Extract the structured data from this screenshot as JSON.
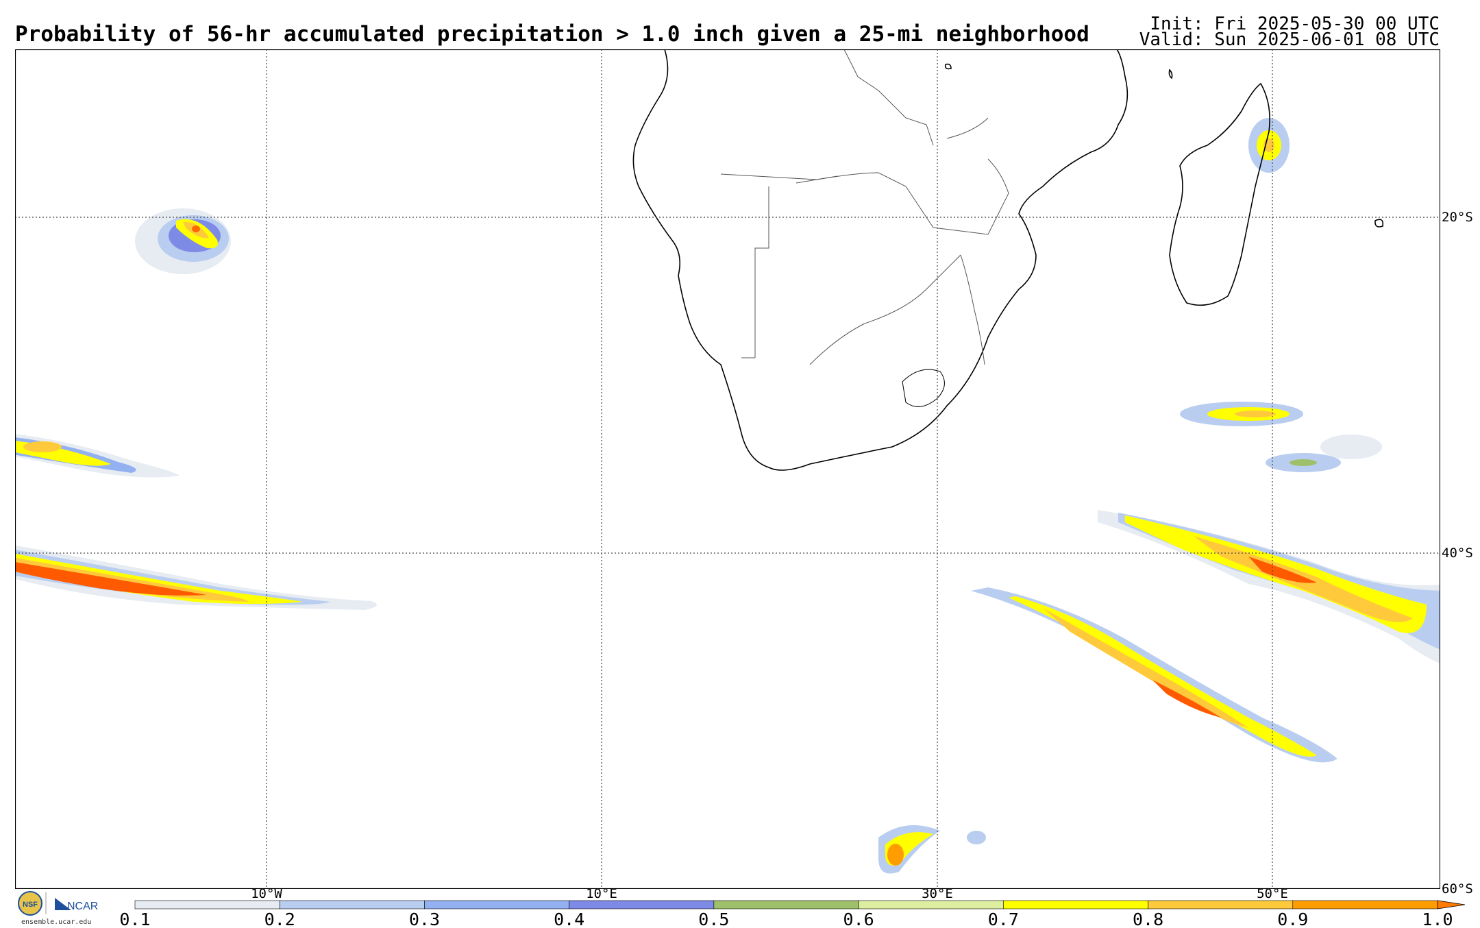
{
  "title": "Probability of 56-hr accumulated precipitation > 1.0 inch given a 25-mi neighborhood",
  "init": "Init: Fri 2025-05-30 00 UTC",
  "valid": "Valid: Sun 2025-06-01 08 UTC",
  "map": {
    "lon_labels": [
      "10°W",
      "10°E",
      "30°E",
      "50°E"
    ],
    "lat_labels": [
      "20°S",
      "40°S",
      "60°S"
    ],
    "gridlines": "dotted"
  },
  "colorbar": {
    "ticks": [
      "0.1",
      "0.2",
      "0.3",
      "0.4",
      "0.5",
      "0.6",
      "0.7",
      "0.8",
      "0.9",
      "1.0"
    ],
    "colors": [
      "#e6ecf2",
      "#b9cdf0",
      "#93b0f0",
      "#7d8ae6",
      "#9fc06a",
      "#ddeea0",
      "#ffff00",
      "#ffc93c",
      "#ff9d00"
    ]
  },
  "footer": {
    "nsf_logo": "NSF",
    "ncar_logo": "NCAR",
    "site": "ensemble.ucar.edu"
  }
}
